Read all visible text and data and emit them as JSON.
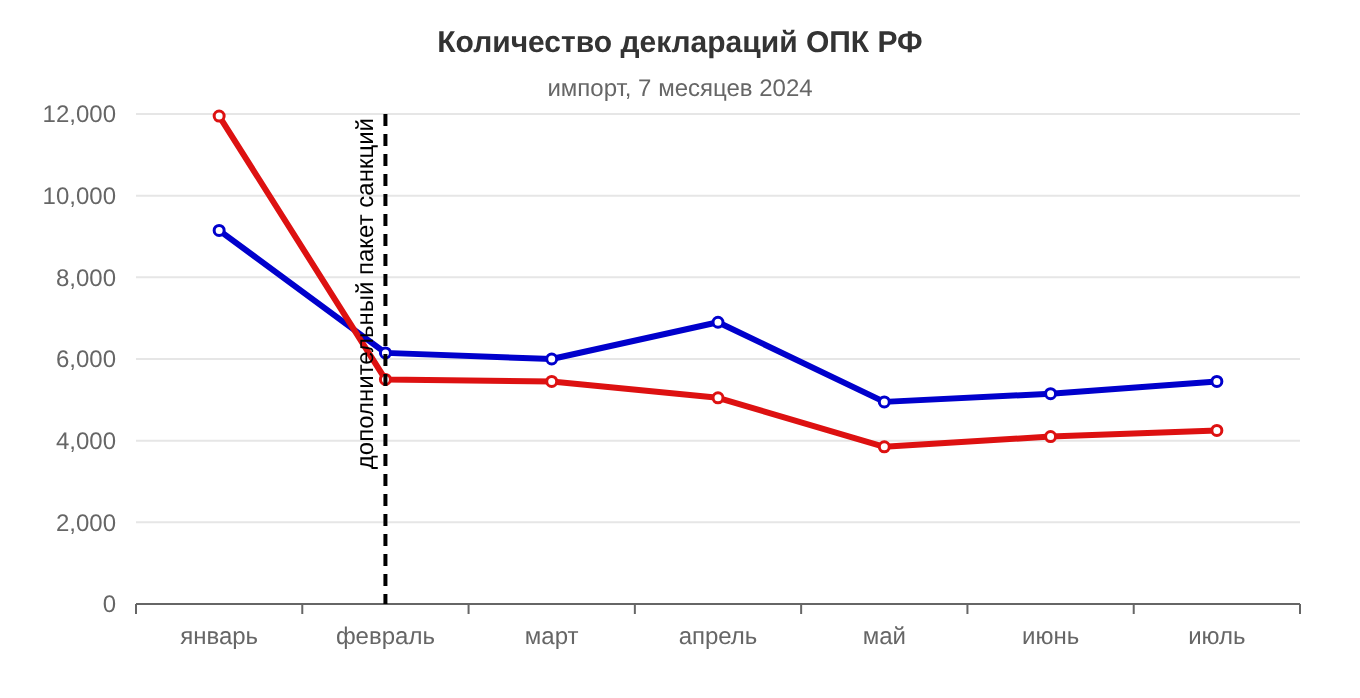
{
  "chart_data": {
    "type": "line",
    "title": "Количество деклараций ОПК РФ",
    "subtitle": "импорт, 7 месяцев 2024",
    "categories": [
      "январь",
      "февраль",
      "март",
      "апрель",
      "май",
      "июнь",
      "июль"
    ],
    "series": [
      {
        "color": "#0000cc",
        "values": [
          9150,
          6150,
          6000,
          6900,
          4950,
          5150,
          5450
        ]
      },
      {
        "color": "#dd1111",
        "values": [
          11950,
          5500,
          5450,
          5050,
          3850,
          4100,
          4250
        ]
      }
    ],
    "ylim": [
      0,
      12000
    ],
    "yticks": [
      {
        "value": 0,
        "label": "0"
      },
      {
        "value": 2000,
        "label": "2,000"
      },
      {
        "value": 4000,
        "label": "4,000"
      },
      {
        "value": 6000,
        "label": "6,000"
      },
      {
        "value": 8000,
        "label": "8,000"
      },
      {
        "value": 10000,
        "label": "10,000"
      },
      {
        "value": 12000,
        "label": "12,000"
      }
    ],
    "grid": "y",
    "marker": "circle",
    "line_style": "solid",
    "ref_lines": [
      {
        "axis": "x",
        "value": "февраль",
        "label": "дополнительный пакет санкций",
        "color": "#000000",
        "line_style": "dashed"
      }
    ]
  }
}
